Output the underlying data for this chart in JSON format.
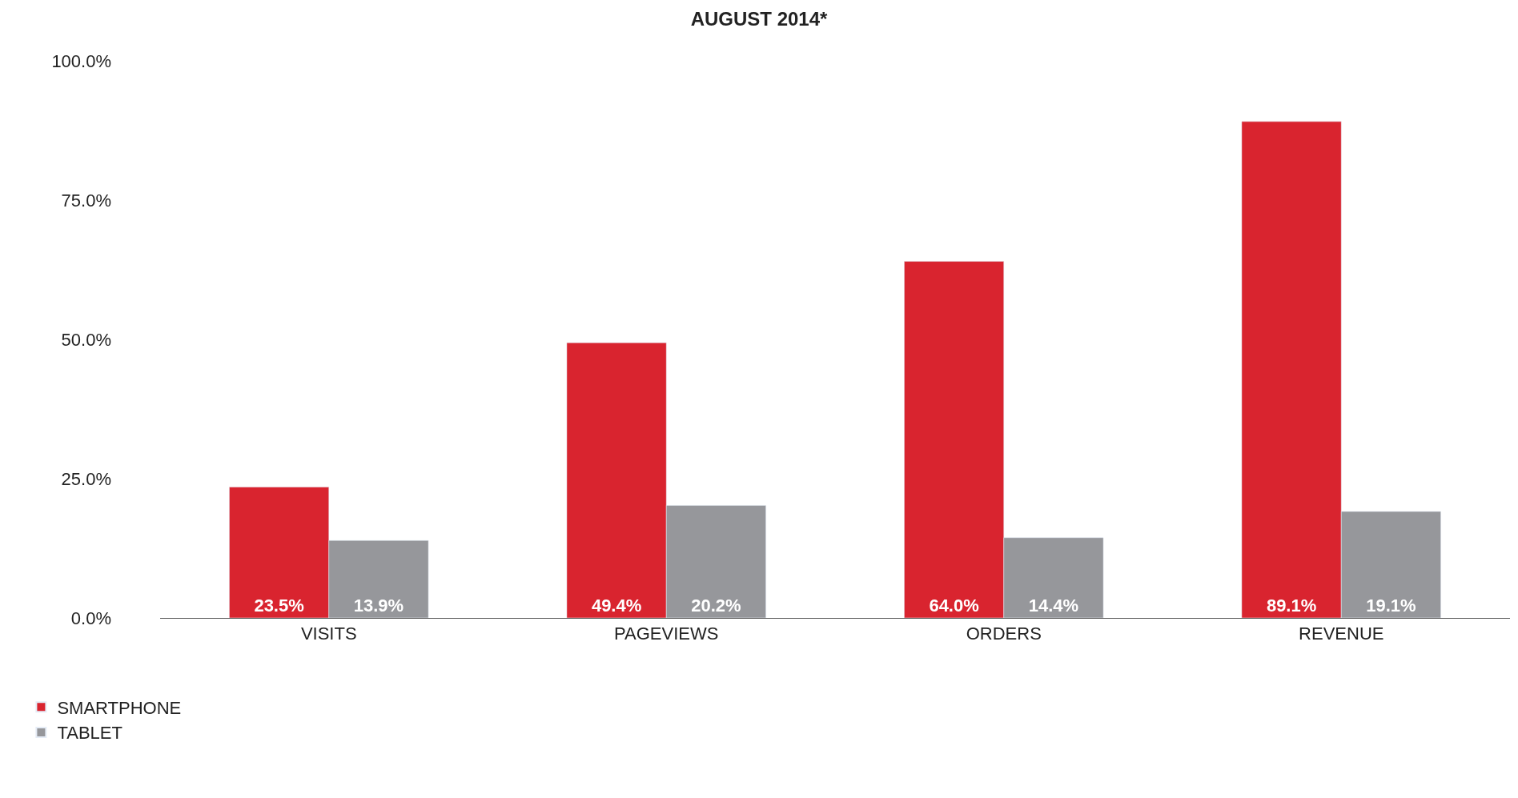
{
  "chart_data": {
    "type": "bar",
    "title": "AUGUST 2014*",
    "categories": [
      "VISITS",
      "PAGEVIEWS",
      "ORDERS",
      "REVENUE"
    ],
    "series": [
      {
        "name": "SMARTPHONE",
        "color": "#d9242f",
        "values": [
          23.5,
          49.4,
          64.0,
          89.1
        ],
        "value_labels": [
          "23.5%",
          "49.4%",
          "64.0%",
          "89.1%"
        ]
      },
      {
        "name": "TABLET",
        "color": "#96979b",
        "values": [
          13.9,
          20.2,
          14.4,
          19.1
        ],
        "value_labels": [
          "13.9%",
          "20.2%",
          "14.4%",
          "19.1%"
        ]
      }
    ],
    "ylim": [
      0,
      100
    ],
    "yticks": [
      {
        "value": 0,
        "label": "0.0%"
      },
      {
        "value": 25,
        "label": "25.0%"
      },
      {
        "value": 50,
        "label": "50.0%"
      },
      {
        "value": 75,
        "label": "75.0%"
      },
      {
        "value": 100,
        "label": "100.0%"
      }
    ],
    "legend": "bottom left"
  }
}
